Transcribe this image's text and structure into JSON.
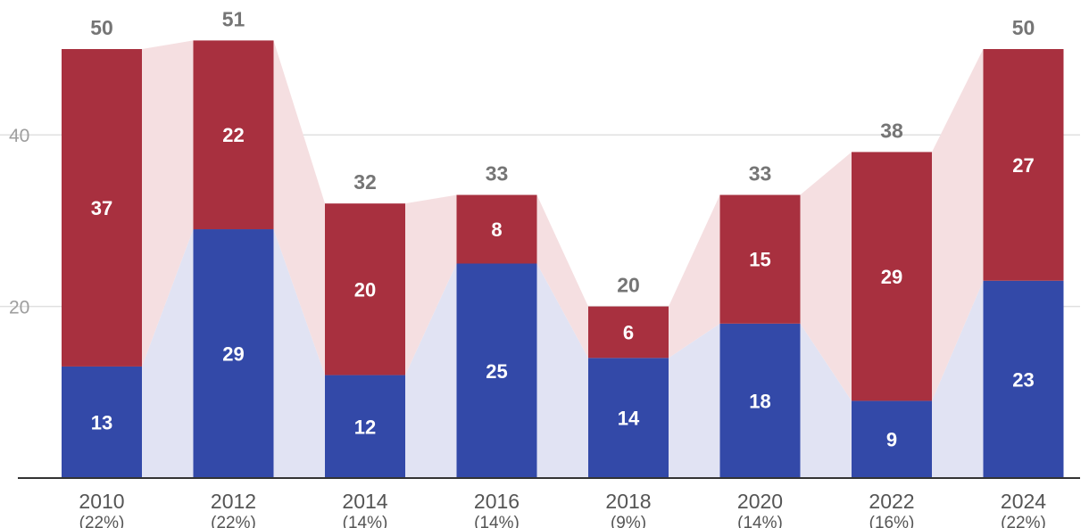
{
  "chart_data": {
    "type": "bar",
    "stacked": true,
    "categories": [
      "2010",
      "2012",
      "2014",
      "2016",
      "2018",
      "2020",
      "2022",
      "2024"
    ],
    "category_sublabels": [
      "(22%)",
      "(22%)",
      "(14%)",
      "(14%)",
      "(9%)",
      "(14%)",
      "(16%)",
      "(22%)"
    ],
    "series": [
      {
        "values": [
          13,
          29,
          12,
          25,
          14,
          18,
          9,
          23
        ],
        "color": "#3349a8",
        "band_color": "#e1e3f3"
      },
      {
        "values": [
          37,
          22,
          20,
          8,
          6,
          15,
          29,
          27
        ],
        "color": "#a8303f",
        "band_color": "#f5dfe1"
      }
    ],
    "totals": [
      50,
      51,
      32,
      33,
      20,
      33,
      38,
      50
    ],
    "yticks": [
      20,
      40
    ],
    "ylim": [
      0,
      56
    ],
    "grid": true,
    "title": "",
    "xlabel": "",
    "ylabel": ""
  }
}
